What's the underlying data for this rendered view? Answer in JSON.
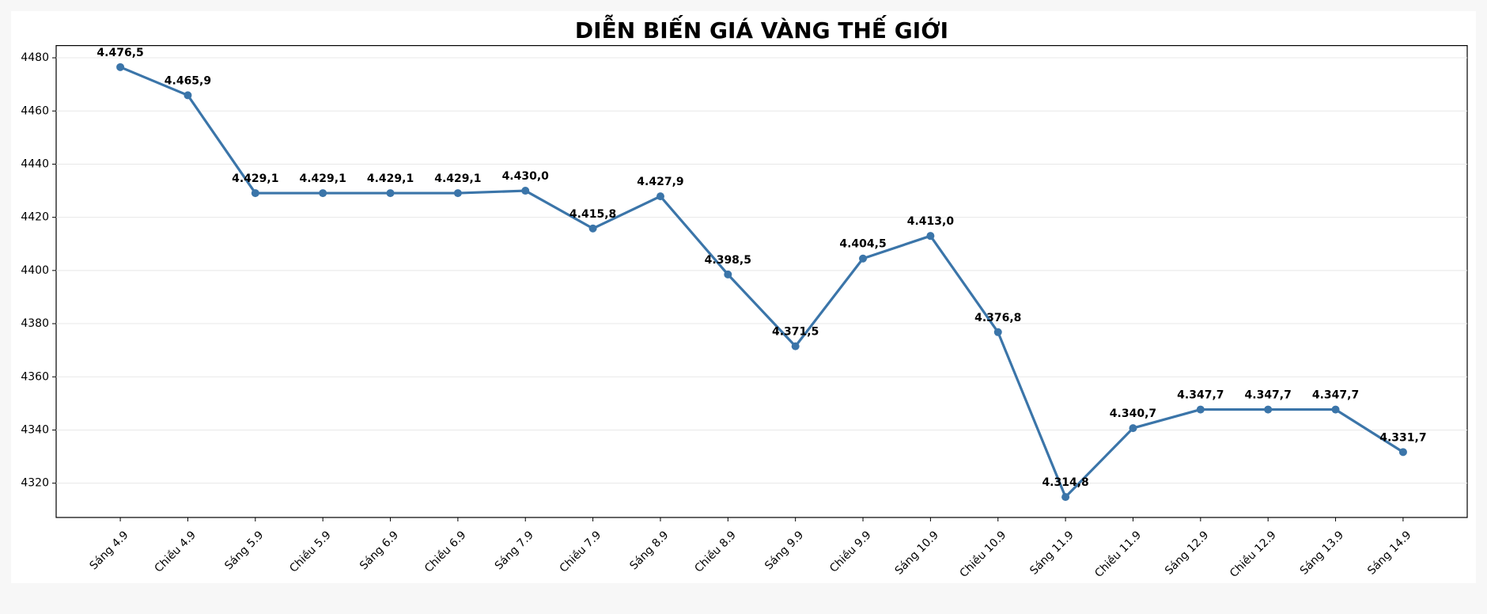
{
  "chart_data": {
    "type": "line",
    "title": "DIỄN BIẾN GIÁ VÀNG THẾ GIỚI",
    "categories": [
      "Sáng 4.9",
      "Chiều 4.9",
      "Sáng 5.9",
      "Chiều 5.9",
      "Sáng 6.9",
      "Chiều 6.9",
      "Sáng 7.9",
      "Chiều 7.9",
      "Sáng 8.9",
      "Chiều 8.9",
      "Sáng 9.9",
      "Chiều 9.9",
      "Sáng 10.9",
      "Chiều 10.9",
      "Sáng 11.9",
      "Chiều 11.9",
      "Sáng 12.9",
      "Chiều 12.9",
      "Sáng 13.9",
      "Sáng 14.9"
    ],
    "series": [
      {
        "color": "#3b75a9",
        "values": [
          4476.5,
          4465.9,
          4429.1,
          4429.1,
          4429.1,
          4429.1,
          4430.0,
          4415.8,
          4427.9,
          4398.5,
          4371.5,
          4404.5,
          4413.0,
          4376.8,
          4314.8,
          4340.7,
          4347.7,
          4347.7,
          4347.7,
          4331.7
        ],
        "value_labels": [
          "4.476,5",
          "4.465,9",
          "4.429,1",
          "4.429,1",
          "4.429,1",
          "4.429,1",
          "4.430,0",
          "4.415,8",
          "4.427,9",
          "4.398,5",
          "4.371,5",
          "4.404,5",
          "4.413,0",
          "4.376,8",
          "4.314,8",
          "4.340,7",
          "4.347,7",
          "4.347,7",
          "4.347,7",
          "4.331,7"
        ]
      }
    ],
    "ylim": [
      4307.1,
      4484.6
    ],
    "yticks": [
      4320,
      4340,
      4360,
      4380,
      4400,
      4420,
      4440,
      4460,
      4480
    ],
    "grid": true
  }
}
